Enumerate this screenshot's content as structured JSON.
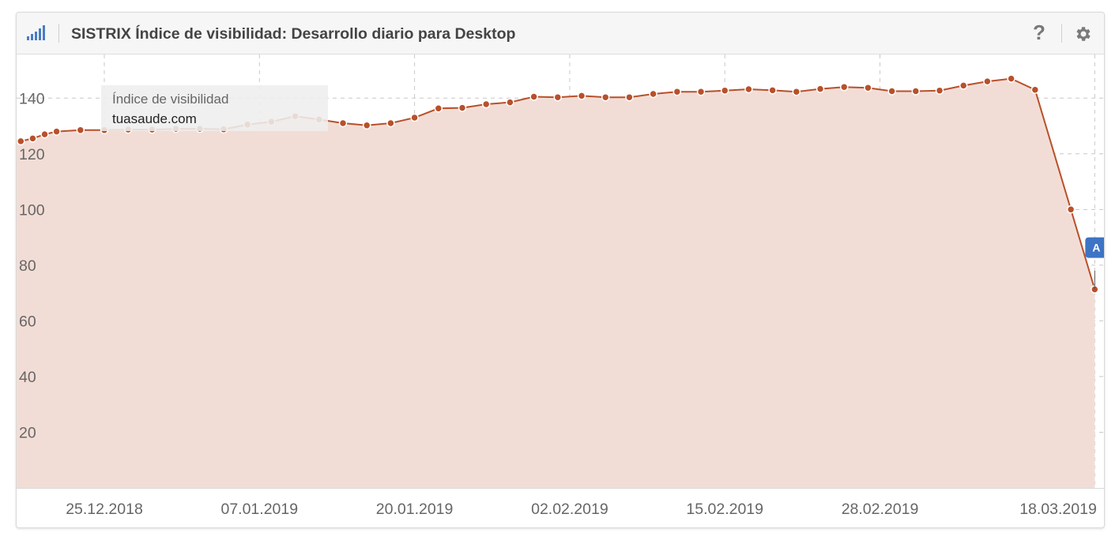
{
  "header": {
    "title": "SISTRIX Índice de visibilidad: Desarrollo diario para Desktop",
    "help_label": "?",
    "logo_icon": "signal-bars-icon",
    "settings_icon": "gear-icon"
  },
  "colors": {
    "line": "#b8502a",
    "area": "#f2ddd6",
    "marker": "#b8502a",
    "grid": "#c8c8c8",
    "header_bg": "#f6f6f6",
    "logo": "#4a7cc4",
    "event_flag": "#3d74c4"
  },
  "tooltip": {
    "series_label": "Índice de visibilidad",
    "domain": "tuasaude.com"
  },
  "event_flag": {
    "label": "A",
    "date": "18.03.2019"
  },
  "chart_data": {
    "type": "area",
    "title": "SISTRIX Índice de visibilidad: Desarrollo diario para Desktop",
    "xlabel": "",
    "ylabel": "",
    "x_ticks": [
      "25.12.2018",
      "07.01.2019",
      "20.01.2019",
      "02.02.2019",
      "15.02.2019",
      "28.02.2019",
      "18.03.2019"
    ],
    "y_ticks": [
      20,
      40,
      60,
      80,
      100,
      120,
      140
    ],
    "ylim": [
      0,
      150
    ],
    "grid": true,
    "series": [
      {
        "name": "tuasaude.com",
        "points": [
          [
            "18.12.2018",
            124.5
          ],
          [
            "19.12.2018",
            125.5
          ],
          [
            "20.12.2018",
            127
          ],
          [
            "21.12.2018",
            128
          ],
          [
            "23.12.2018",
            128.5
          ],
          [
            "25.12.2018",
            128.5
          ],
          [
            "27.12.2018",
            128.7
          ],
          [
            "29.12.2018",
            128.7
          ],
          [
            "31.12.2018",
            129
          ],
          [
            "02.01.2019",
            129
          ],
          [
            "04.01.2019",
            128.8
          ],
          [
            "06.01.2019",
            130.5
          ],
          [
            "08.01.2019",
            131.5
          ],
          [
            "10.01.2019",
            133.5
          ],
          [
            "12.01.2019",
            132.3
          ],
          [
            "14.01.2019",
            131
          ],
          [
            "16.01.2019",
            130.2
          ],
          [
            "18.01.2019",
            131
          ],
          [
            "20.01.2019",
            133
          ],
          [
            "22.01.2019",
            136.3
          ],
          [
            "24.01.2019",
            136.5
          ],
          [
            "26.01.2019",
            137.8
          ],
          [
            "28.01.2019",
            138.5
          ],
          [
            "30.01.2019",
            140.5
          ],
          [
            "01.02.2019",
            140.3
          ],
          [
            "03.02.2019",
            140.8
          ],
          [
            "05.02.2019",
            140.3
          ],
          [
            "07.02.2019",
            140.3
          ],
          [
            "09.02.2019",
            141.5
          ],
          [
            "11.02.2019",
            142.3
          ],
          [
            "13.02.2019",
            142.3
          ],
          [
            "15.02.2019",
            142.7
          ],
          [
            "17.02.2019",
            143.2
          ],
          [
            "19.02.2019",
            142.8
          ],
          [
            "21.02.2019",
            142.3
          ],
          [
            "23.02.2019",
            143.3
          ],
          [
            "25.02.2019",
            144
          ],
          [
            "27.02.2019",
            143.7
          ],
          [
            "01.03.2019",
            142.5
          ],
          [
            "03.03.2019",
            142.5
          ],
          [
            "05.03.2019",
            142.7
          ],
          [
            "07.03.2019",
            144.5
          ],
          [
            "09.03.2019",
            146
          ],
          [
            "11.03.2019",
            147
          ],
          [
            "13.03.2019",
            143
          ],
          [
            "16.03.2019",
            100
          ],
          [
            "18.03.2019",
            71.3
          ]
        ]
      }
    ]
  }
}
